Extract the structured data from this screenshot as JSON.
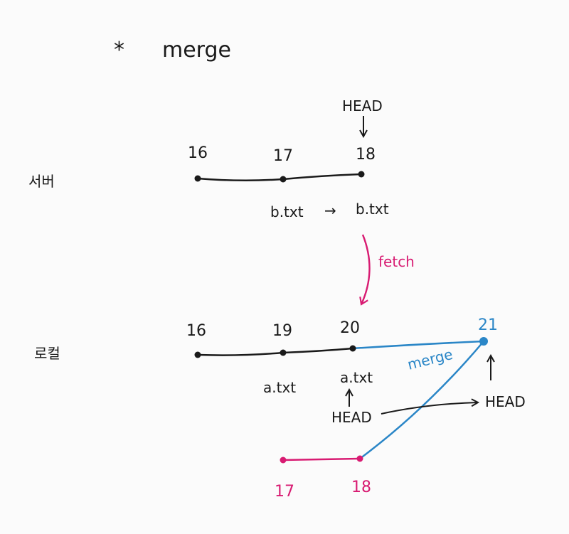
{
  "title": {
    "bullet": "*",
    "text": "merge"
  },
  "remote": {
    "label": "서버",
    "commits": [
      "16",
      "17",
      "18"
    ],
    "head": "HEAD",
    "file_change": [
      "b.txt",
      "→",
      "b.txt"
    ]
  },
  "fetch_label": "fetch",
  "local": {
    "label": "로컬",
    "commits": [
      "16",
      "19",
      "20",
      "21"
    ],
    "files": [
      "a.txt",
      "a.txt"
    ],
    "head_old": "HEAD",
    "head_new": "HEAD",
    "fetched_commits": [
      "17",
      "18"
    ],
    "merge_label": "merge"
  },
  "colors": {
    "ink": "#1a1a1a",
    "fetch": "#d81b72",
    "merge": "#2a86c7"
  }
}
